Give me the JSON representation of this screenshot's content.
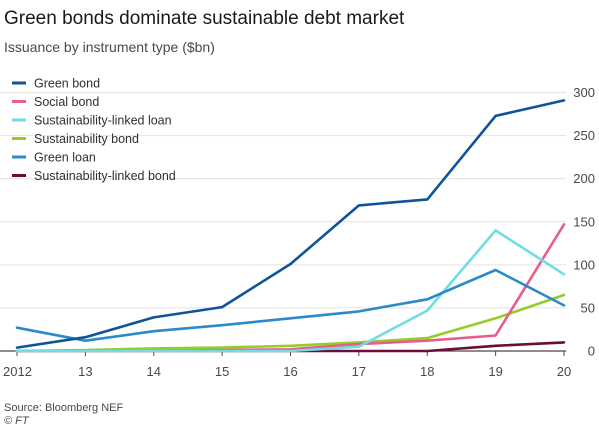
{
  "header": {
    "title": "Green bonds dominate sustainable debt market",
    "subtitle": "Issuance by instrument type ($bn)"
  },
  "footer": {
    "source": "Source: Bloomberg NEF",
    "credit": "© FT"
  },
  "chart_data": {
    "type": "line",
    "title": "Green bonds dominate sustainable debt market",
    "subtitle": "Issuance by instrument type ($bn)",
    "x": [
      2012,
      2013,
      2014,
      2015,
      2016,
      2017,
      2018,
      2019,
      2020
    ],
    "x_tick_labels": [
      "2012",
      "13",
      "14",
      "15",
      "16",
      "17",
      "18",
      "19",
      "20"
    ],
    "y_ticks": [
      0,
      50,
      100,
      150,
      200,
      250,
      300
    ],
    "ylim": [
      0,
      310
    ],
    "y_axis_side": "right",
    "grid": "horizontal",
    "legend_position": "top-left",
    "series": [
      {
        "name": "Green bond",
        "color": "#0f5499",
        "values": [
          4,
          16,
          39,
          51,
          101,
          169,
          176,
          273,
          291
        ]
      },
      {
        "name": "Social bond",
        "color": "#e95d8c",
        "values": [
          0,
          0,
          0,
          1,
          2,
          8,
          12,
          18,
          147
        ]
      },
      {
        "name": "Sustainability-linked loan",
        "color": "#6fdde4",
        "values": [
          0,
          0,
          0,
          0,
          0,
          5,
          47,
          140,
          89
        ]
      },
      {
        "name": "Sustainability bond",
        "color": "#96cc28",
        "values": [
          0,
          1,
          3,
          4,
          6,
          10,
          15,
          38,
          65
        ]
      },
      {
        "name": "Green loan",
        "color": "#2b8ac8",
        "values": [
          27,
          12,
          23,
          30,
          38,
          46,
          60,
          94,
          53
        ]
      },
      {
        "name": "Sustainability-linked bond",
        "color": "#6b0d34",
        "values": [
          0,
          0,
          0,
          0,
          0,
          0,
          0,
          6,
          10
        ]
      }
    ]
  }
}
